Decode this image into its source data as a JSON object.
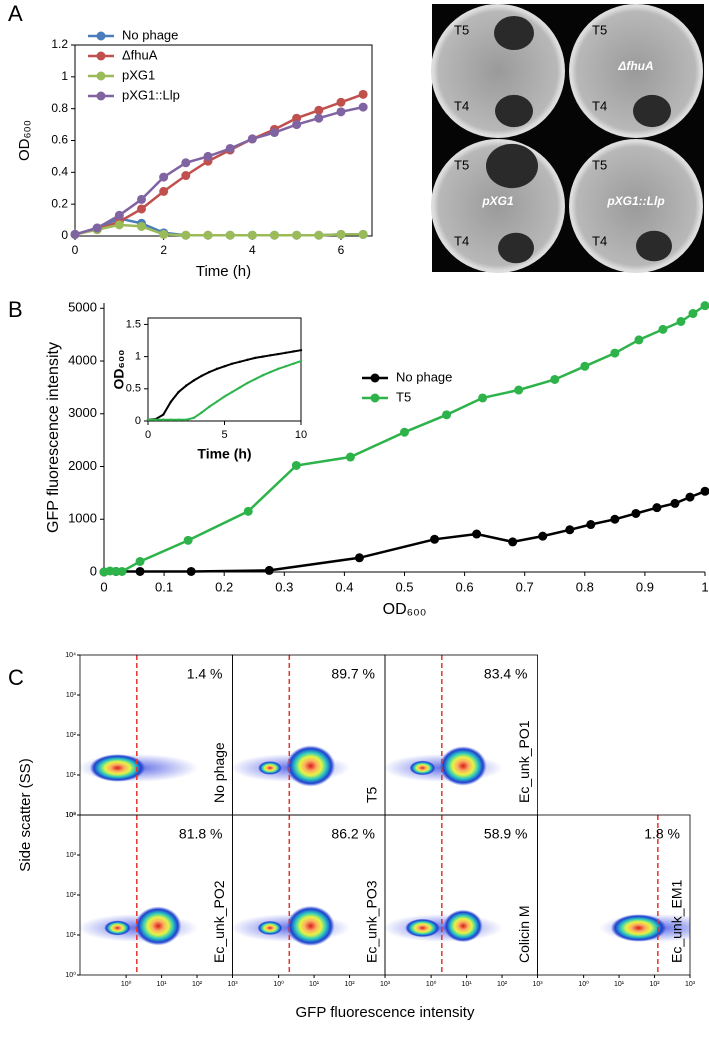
{
  "chart_data": [
    {
      "type": "line",
      "panel": "A",
      "xlabel": "Time (h)",
      "ylabel": "OD₆₀₀",
      "x": [
        0,
        0.5,
        1,
        1.5,
        2,
        2.5,
        3,
        3.5,
        4,
        4.5,
        5,
        5.5,
        6,
        6.5
      ],
      "xlim": [
        0,
        6.7
      ],
      "xticks": [
        0,
        2,
        4,
        6
      ],
      "ylim": [
        0,
        1.2
      ],
      "yticks": [
        0,
        0.2,
        0.4,
        0.6,
        0.8,
        1,
        1.2
      ],
      "series": [
        {
          "name": "No phage",
          "color": "#4a7ebb",
          "values": [
            0.01,
            0.05,
            0.11,
            0.08,
            0.02,
            0.005,
            0.005,
            0.005,
            0.005,
            0.005,
            0.005,
            0.005,
            0.01,
            0.01
          ]
        },
        {
          "name": "ΔfhuA",
          "color": "#c0504d",
          "values": [
            0.01,
            0.04,
            0.09,
            0.17,
            0.28,
            0.38,
            0.47,
            0.54,
            0.61,
            0.67,
            0.74,
            0.79,
            0.84,
            0.89
          ]
        },
        {
          "name": "pXG1",
          "color": "#9bbb59",
          "values": [
            0.01,
            0.04,
            0.07,
            0.06,
            0.01,
            0.005,
            0.005,
            0.005,
            0.005,
            0.005,
            0.005,
            0.005,
            0.01,
            0.01
          ]
        },
        {
          "name": "pXG1::Llp",
          "color": "#8064a2",
          "values": [
            0.01,
            0.05,
            0.13,
            0.23,
            0.37,
            0.46,
            0.5,
            0.55,
            0.61,
            0.65,
            0.7,
            0.74,
            0.78,
            0.81
          ]
        }
      ]
    },
    {
      "type": "line",
      "panel": "B",
      "xlabel": "OD₆₀₀",
      "ylabel": "GFP fluorescence intensity",
      "xlim": [
        0,
        1
      ],
      "xticks": [
        0,
        0.1,
        0.2,
        0.3,
        0.4,
        0.5,
        0.6,
        0.7,
        0.8,
        0.9,
        1
      ],
      "ylim": [
        0,
        5100
      ],
      "yticks": [
        0,
        1000,
        2000,
        3000,
        4000,
        5000
      ],
      "series": [
        {
          "name": "No phage",
          "color": "#000000",
          "x": [
            0,
            0.02,
            0.06,
            0.145,
            0.275,
            0.425,
            0.55,
            0.62,
            0.68,
            0.73,
            0.775,
            0.81,
            0.85,
            0.885,
            0.92,
            0.95,
            0.975,
            1.0
          ],
          "values": [
            0,
            10,
            10,
            10,
            30,
            270,
            620,
            720,
            570,
            680,
            800,
            900,
            1000,
            1110,
            1220,
            1300,
            1420,
            1530
          ]
        },
        {
          "name": "T5",
          "color": "#2db34a",
          "x": [
            0,
            0.01,
            0.02,
            0.03,
            0.06,
            0.14,
            0.24,
            0.32,
            0.41,
            0.5,
            0.57,
            0.63,
            0.69,
            0.75,
            0.8,
            0.85,
            0.89,
            0.93,
            0.96,
            0.98,
            1.0
          ],
          "values": [
            0,
            20,
            10,
            10,
            200,
            600,
            1150,
            2020,
            2180,
            2650,
            2980,
            3300,
            3450,
            3650,
            3900,
            4150,
            4400,
            4600,
            4750,
            4900,
            5050
          ]
        }
      ]
    },
    {
      "type": "line",
      "xlabel": "Time (h)",
      "ylabel": "OD₆₀₀",
      "xlim": [
        0,
        10
      ],
      "xticks": [
        0,
        5,
        10
      ],
      "ylim": [
        0,
        1.6
      ],
      "yticks": [
        0,
        0.5,
        1,
        1.5
      ],
      "series": [
        {
          "color": "#000000",
          "x": [
            0,
            0.5,
            1,
            1.5,
            2,
            2.5,
            3,
            3.5,
            4,
            4.5,
            5,
            5.5,
            6,
            6.5,
            7,
            7.5,
            8,
            8.5,
            9,
            9.5,
            10
          ],
          "values": [
            0.02,
            0.03,
            0.1,
            0.3,
            0.45,
            0.55,
            0.63,
            0.7,
            0.76,
            0.81,
            0.85,
            0.89,
            0.92,
            0.95,
            0.98,
            1.0,
            1.02,
            1.04,
            1.06,
            1.08,
            1.1
          ]
        },
        {
          "color": "#2db34a",
          "x": [
            0,
            0.5,
            1,
            1.5,
            2,
            2.5,
            3,
            3.5,
            4,
            4.5,
            5,
            5.5,
            6,
            6.5,
            7,
            7.5,
            8,
            8.5,
            9,
            9.5,
            10
          ],
          "values": [
            0.02,
            0.02,
            0.02,
            0.02,
            0.02,
            0.02,
            0.05,
            0.13,
            0.22,
            0.3,
            0.38,
            0.45,
            0.52,
            0.59,
            0.65,
            0.71,
            0.76,
            0.81,
            0.85,
            0.89,
            0.93
          ]
        }
      ]
    },
    {
      "type": "flow",
      "panel": "C",
      "xlabel": "GFP fluorescence intensity",
      "ylabel": "Side scatter (SS)",
      "xscale": "log",
      "yscale": "log",
      "xlim": [
        0.05,
        1000
      ],
      "ylim": [
        1,
        10000
      ],
      "gate_color": "#e8322a",
      "xticks": [
        {
          "value": 1,
          "label": "10⁰"
        },
        {
          "value": 10,
          "label": "10¹"
        },
        {
          "value": 100,
          "label": "10²"
        },
        {
          "value": 1000,
          "label": "10³"
        }
      ],
      "yticks": [
        {
          "value": 1,
          "label": "10⁰"
        },
        {
          "value": 10,
          "label": "10¹"
        },
        {
          "value": 100,
          "label": "10²"
        },
        {
          "value": 1000,
          "label": "10³"
        },
        {
          "value": 10000,
          "label": "10⁴"
        }
      ],
      "samples": [
        {
          "name": "No phage",
          "gate": 2,
          "value": 1.4,
          "value_label": "1.4 %"
        },
        {
          "name": "T5",
          "gate": 2,
          "value": 89.7,
          "value_label": "89.7 %"
        },
        {
          "name": "Ec_unk_PO1",
          "gate": 2,
          "value": 83.4,
          "value_label": "83.4 %"
        },
        {
          "name": "Ec_unk_PO2",
          "gate": 2,
          "value": 81.8,
          "value_label": "81.8 %"
        },
        {
          "name": "Ec_unk_PO3",
          "gate": 2,
          "value": 86.2,
          "value_label": "86.2 %"
        },
        {
          "name": "Colicin M",
          "gate": 2,
          "value": 58.9,
          "value_label": "58.9 %"
        },
        {
          "name": "Ec_unk_EM1",
          "gate": 124,
          "value": 1.8,
          "value_label": "1.8 %"
        }
      ]
    }
  ],
  "plates": [
    {
      "labels": [
        "T5",
        "T4"
      ]
    },
    {
      "labels": [
        "T5",
        "T4"
      ],
      "strain": "ΔfhuA"
    },
    {
      "labels": [
        "T5",
        "T4"
      ],
      "strain": "pXG1"
    },
    {
      "labels": [
        "T5",
        "T4"
      ],
      "strain": "pXG1::Llp"
    }
  ]
}
